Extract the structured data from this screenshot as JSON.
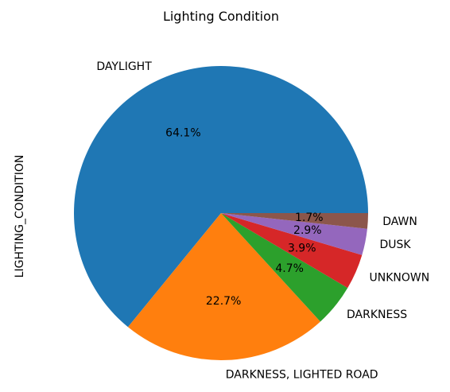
{
  "chart_data": {
    "type": "pie",
    "title": "Lighting Condition",
    "ylabel": "LIGHTING_CONDITION",
    "xlabel": "",
    "slices": [
      {
        "label": "DAYLIGHT",
        "pct_label": "64.1%",
        "value": 64.1,
        "color": "#1f77b4"
      },
      {
        "label": "DARKNESS, LIGHTED ROAD",
        "pct_label": "22.7%",
        "value": 22.7,
        "color": "#ff7f0e"
      },
      {
        "label": "DARKNESS",
        "pct_label": "4.7%",
        "value": 4.7,
        "color": "#2ca02c"
      },
      {
        "label": "UNKNOWN",
        "pct_label": "3.9%",
        "value": 3.9,
        "color": "#d62728"
      },
      {
        "label": "DUSK",
        "pct_label": "2.9%",
        "value": 2.9,
        "color": "#9467bd"
      },
      {
        "label": "DAWN",
        "pct_label": "1.7%",
        "value": 1.7,
        "color": "#8c564b"
      }
    ],
    "start_angle": 0,
    "direction": "counterclockwise",
    "legend": "none"
  }
}
